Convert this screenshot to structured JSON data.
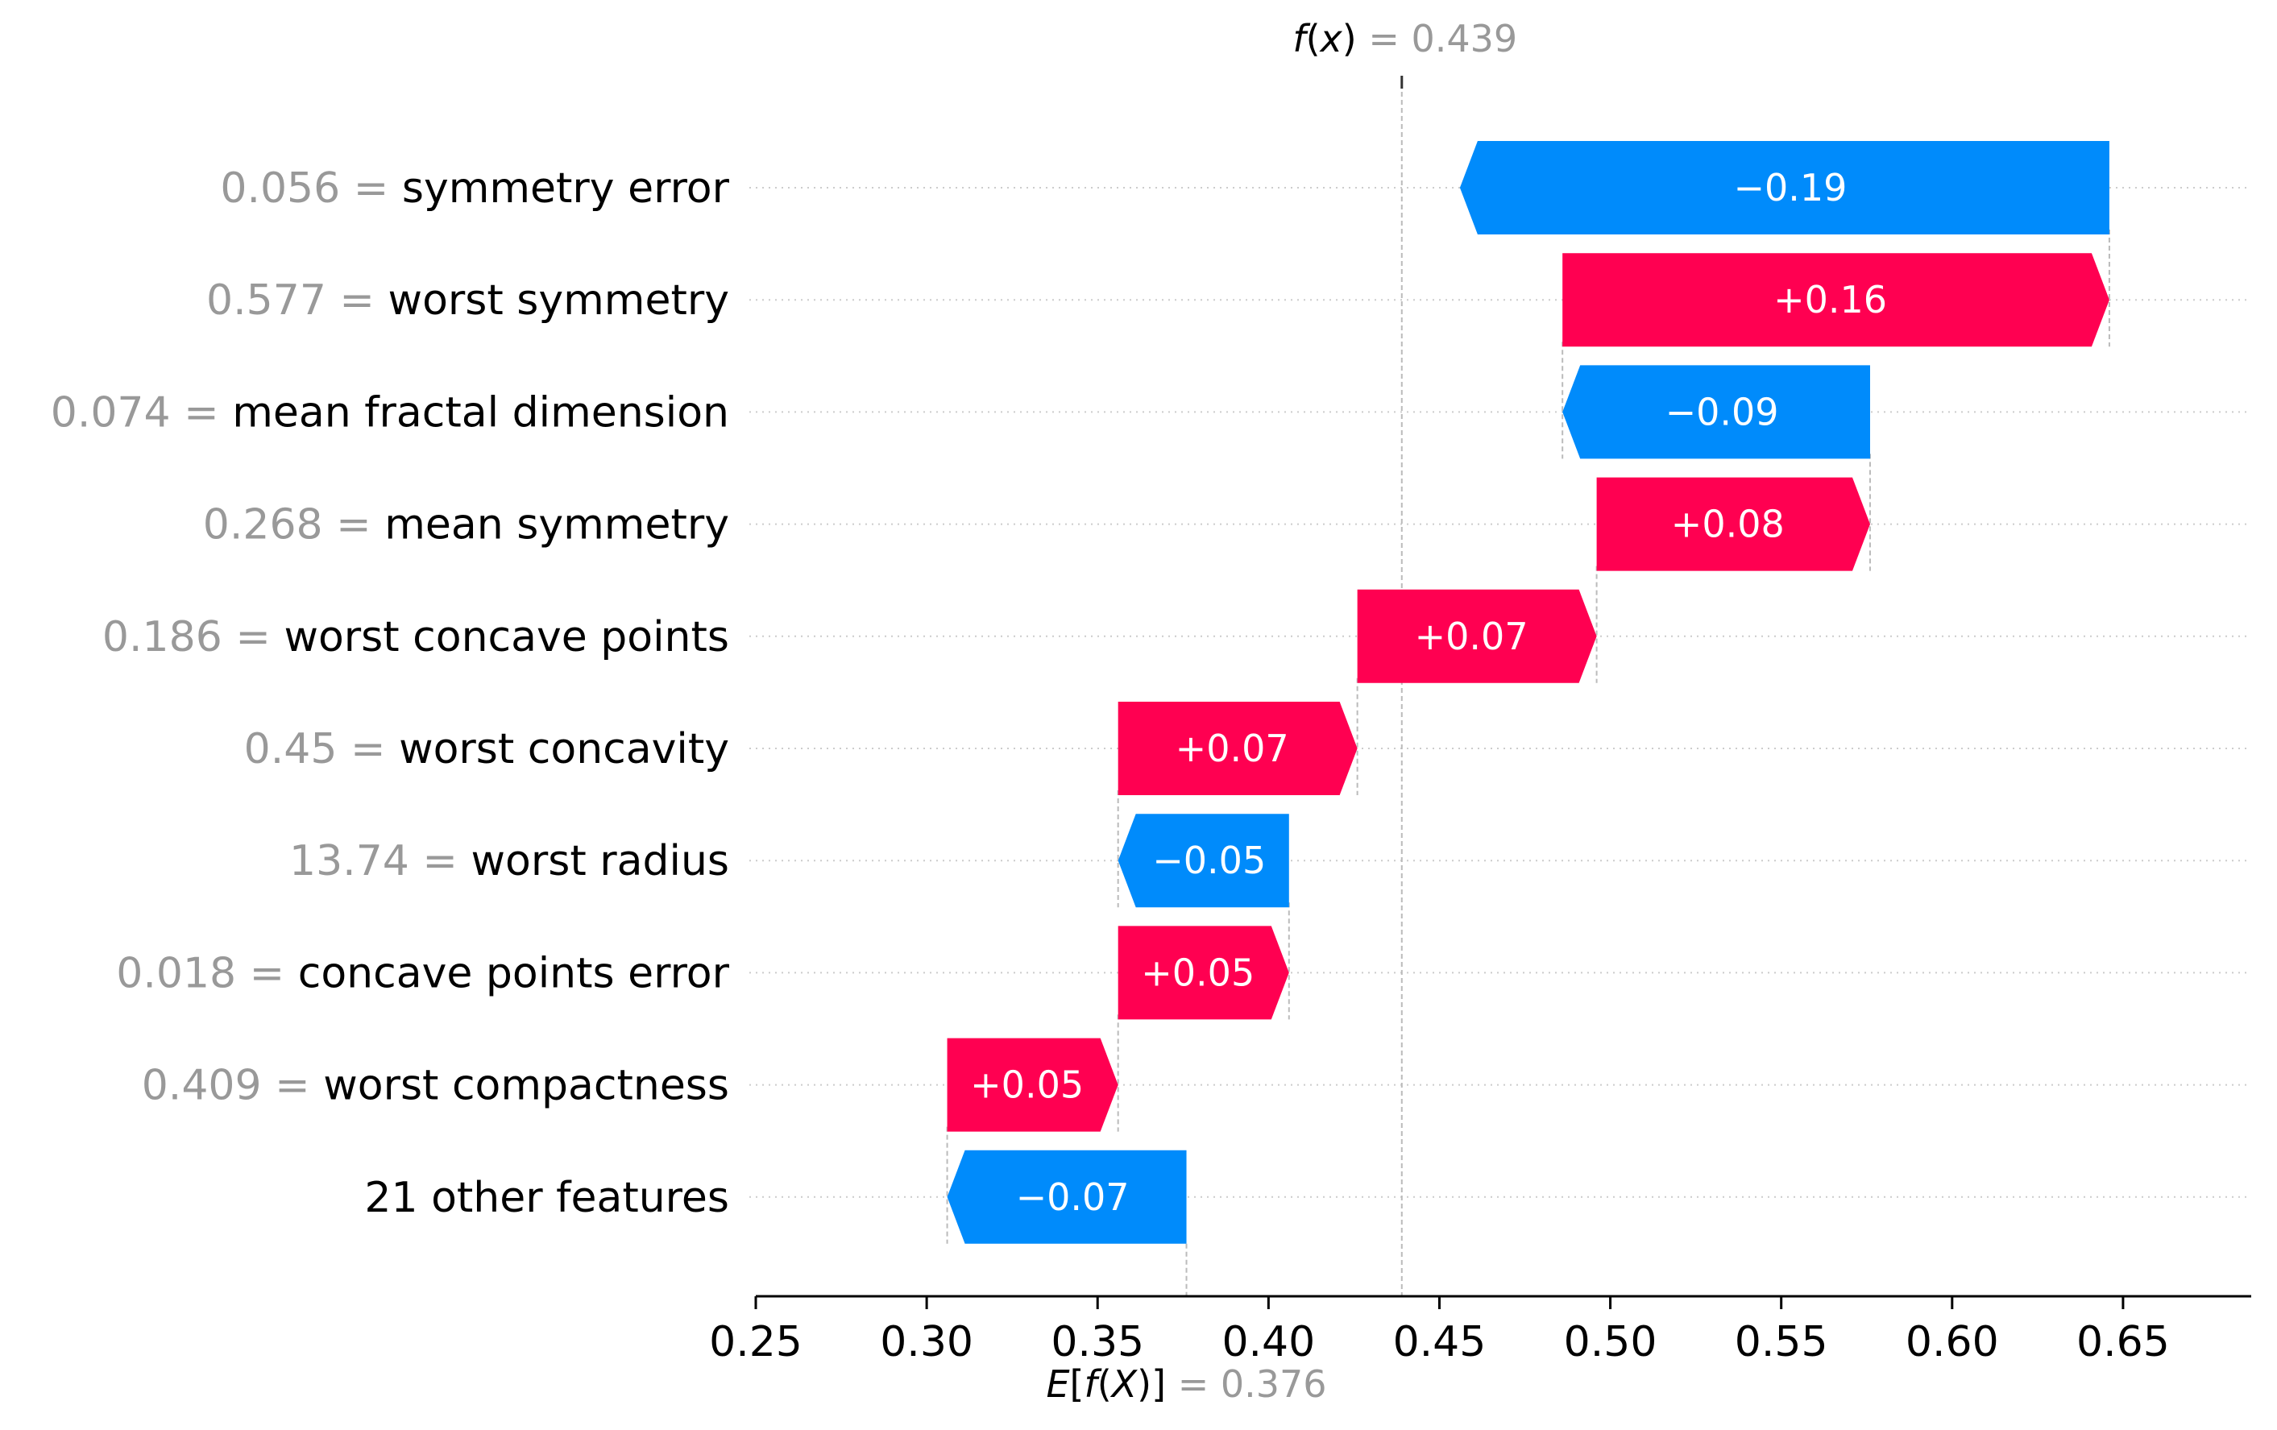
{
  "colors": {
    "positive": "#ff0051",
    "negative": "#008bfb",
    "gray_text": "#999999",
    "black_text": "#000000",
    "guide_line": "#bbbbbb",
    "grid_dots": "#cccccc"
  },
  "chart_data": {
    "type": "waterfall",
    "title": "",
    "xlabel": "",
    "ylabel": "",
    "xlim": [
      0.25,
      0.6875
    ],
    "x_ticks": [
      "0.25",
      "0.30",
      "0.35",
      "0.40",
      "0.45",
      "0.50",
      "0.55",
      "0.60",
      "0.65"
    ],
    "tick_values": [
      0.25,
      0.3,
      0.35,
      0.4,
      0.45,
      0.5,
      0.55,
      0.6,
      0.65
    ],
    "base_value": 0.376,
    "output_value": 0.439,
    "fx_label": {
      "prefix": "f",
      "arg": "(x)",
      "eq": " = ",
      "value": "0.439"
    },
    "efx_label": {
      "prefix": "E",
      "arg": "[f(X)]",
      "eq": " = ",
      "value": "0.376"
    },
    "features": [
      {
        "value_text": "0.056",
        "eq": " = ",
        "name": "symmetry error",
        "contribution": -0.19,
        "label": "−0.19"
      },
      {
        "value_text": "0.577",
        "eq": " = ",
        "name": "worst symmetry",
        "contribution": 0.16,
        "label": "+0.16"
      },
      {
        "value_text": "0.074",
        "eq": " = ",
        "name": "mean fractal dimension",
        "contribution": -0.09,
        "label": "−0.09"
      },
      {
        "value_text": "0.268",
        "eq": " = ",
        "name": "mean symmetry",
        "contribution": 0.08,
        "label": "+0.08"
      },
      {
        "value_text": "0.186",
        "eq": " = ",
        "name": "worst concave points",
        "contribution": 0.07,
        "label": "+0.07"
      },
      {
        "value_text": "0.45",
        "eq": " = ",
        "name": "worst concavity",
        "contribution": 0.07,
        "label": "+0.07"
      },
      {
        "value_text": "13.74",
        "eq": " = ",
        "name": "worst radius",
        "contribution": -0.05,
        "label": "−0.05"
      },
      {
        "value_text": "0.018",
        "eq": " = ",
        "name": "concave points error",
        "contribution": 0.05,
        "label": "+0.05"
      },
      {
        "value_text": "0.409",
        "eq": " = ",
        "name": "worst compactness",
        "contribution": 0.05,
        "label": "+0.05"
      },
      {
        "value_text": "",
        "eq": "",
        "name": "21 other features",
        "contribution": -0.07,
        "label": "−0.07"
      }
    ]
  }
}
